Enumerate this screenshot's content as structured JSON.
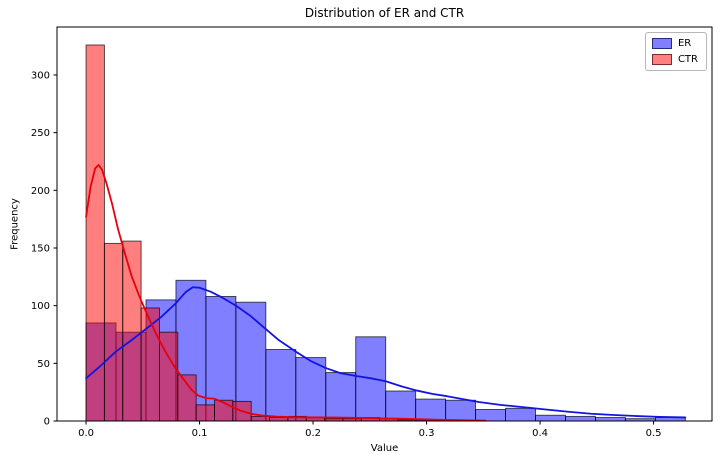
{
  "title": "Distribution of ER and CTR",
  "xlabel": "Value",
  "ylabel": "Frequency",
  "legend": {
    "items": [
      {
        "label": "ER",
        "swatch_fill": "#8080ff",
        "swatch_edge": "#2a2a80"
      },
      {
        "label": "CTR",
        "swatch_fill": "#ff8080",
        "swatch_edge": "#802a2a"
      }
    ]
  },
  "chart_data": {
    "type": "histogram-kde",
    "title": "Distribution of ER and CTR",
    "xlabel": "Value",
    "ylabel": "Frequency",
    "xlim": [
      -0.0256,
      0.5515
    ],
    "ylim": [
      0,
      341.6
    ],
    "grid": false,
    "legend_position": "upper right",
    "x_ticks": [
      {
        "value": 0.0,
        "label": "0.0"
      },
      {
        "value": 0.1,
        "label": "0.1"
      },
      {
        "value": 0.2,
        "label": "0.2"
      },
      {
        "value": 0.3,
        "label": "0.3"
      },
      {
        "value": 0.4,
        "label": "0.4"
      },
      {
        "value": 0.5,
        "label": "0.5"
      }
    ],
    "y_ticks": [
      {
        "value": 0,
        "label": "0"
      },
      {
        "value": 50,
        "label": "50"
      },
      {
        "value": 100,
        "label": "100"
      },
      {
        "value": 150,
        "label": "150"
      },
      {
        "value": 200,
        "label": "200"
      },
      {
        "value": 250,
        "label": "250"
      },
      {
        "value": 300,
        "label": "300"
      }
    ],
    "series": [
      {
        "name": "ER",
        "bar_fill": "#0000ff",
        "bar_opacity": 0.5,
        "bar_edge": "rgba(0,0,0,0.72)",
        "kde_color": "#1414e0",
        "bin_start": 0.0,
        "bin_width": 0.0264,
        "frequencies": [
          85,
          77,
          105,
          122,
          108,
          103,
          62,
          55,
          42,
          73,
          26,
          19,
          18,
          10,
          11,
          5,
          4,
          3,
          2,
          3
        ],
        "kde": [
          [
            0.0,
            37
          ],
          [
            0.013,
            48
          ],
          [
            0.026,
            60
          ],
          [
            0.04,
            70
          ],
          [
            0.053,
            80
          ],
          [
            0.066,
            90
          ],
          [
            0.079,
            102
          ],
          [
            0.088,
            112
          ],
          [
            0.094,
            116
          ],
          [
            0.1,
            115.5
          ],
          [
            0.11,
            112
          ],
          [
            0.12,
            107
          ],
          [
            0.132,
            100
          ],
          [
            0.145,
            91
          ],
          [
            0.158,
            80
          ],
          [
            0.17,
            70
          ],
          [
            0.185,
            60
          ],
          [
            0.198,
            52
          ],
          [
            0.211,
            46
          ],
          [
            0.224,
            41.5
          ],
          [
            0.238,
            39
          ],
          [
            0.251,
            37
          ],
          [
            0.264,
            34.5
          ],
          [
            0.278,
            30
          ],
          [
            0.291,
            26.5
          ],
          [
            0.305,
            23.5
          ],
          [
            0.318,
            21.5
          ],
          [
            0.332,
            19
          ],
          [
            0.346,
            16.5
          ],
          [
            0.365,
            14
          ],
          [
            0.385,
            12
          ],
          [
            0.405,
            10
          ],
          [
            0.425,
            8
          ],
          [
            0.445,
            6.3
          ],
          [
            0.465,
            5.2
          ],
          [
            0.485,
            4.3
          ],
          [
            0.505,
            3.6
          ],
          [
            0.528,
            3.1
          ]
        ]
      },
      {
        "name": "CTR",
        "bar_fill": "#ff0000",
        "bar_opacity": 0.5,
        "bar_edge": "rgba(0,0,0,0.72)",
        "kde_color": "#e8000b",
        "bin_start": 0.0,
        "bin_width": 0.016167,
        "frequencies": [
          326,
          154,
          156,
          98,
          77,
          40,
          14,
          18,
          17,
          4,
          3,
          4,
          3,
          2,
          2,
          3,
          2,
          1,
          1
        ],
        "kde": [
          [
            0.0,
            177
          ],
          [
            0.004,
            203
          ],
          [
            0.008,
            219
          ],
          [
            0.011,
            222
          ],
          [
            0.014,
            218
          ],
          [
            0.018,
            206
          ],
          [
            0.023,
            188
          ],
          [
            0.028,
            167
          ],
          [
            0.034,
            146
          ],
          [
            0.04,
            126
          ],
          [
            0.047,
            108
          ],
          [
            0.054,
            92
          ],
          [
            0.062,
            75
          ],
          [
            0.07,
            60
          ],
          [
            0.078,
            47
          ],
          [
            0.086,
            36
          ],
          [
            0.093,
            27
          ],
          [
            0.099,
            22
          ],
          [
            0.106,
            19.8
          ],
          [
            0.113,
            19.3
          ],
          [
            0.12,
            16.5
          ],
          [
            0.128,
            12.5
          ],
          [
            0.136,
            9
          ],
          [
            0.145,
            6.3
          ],
          [
            0.155,
            4.8
          ],
          [
            0.168,
            3.8
          ],
          [
            0.182,
            3.3
          ],
          [
            0.2,
            3.1
          ],
          [
            0.22,
            3.0
          ],
          [
            0.24,
            2.7
          ],
          [
            0.258,
            2.3
          ],
          [
            0.275,
            2.0
          ],
          [
            0.292,
            1.6
          ],
          [
            0.31,
            1.1
          ],
          [
            0.328,
            0.7
          ],
          [
            0.345,
            0.4
          ],
          [
            0.352,
            0.3
          ]
        ]
      }
    ]
  }
}
